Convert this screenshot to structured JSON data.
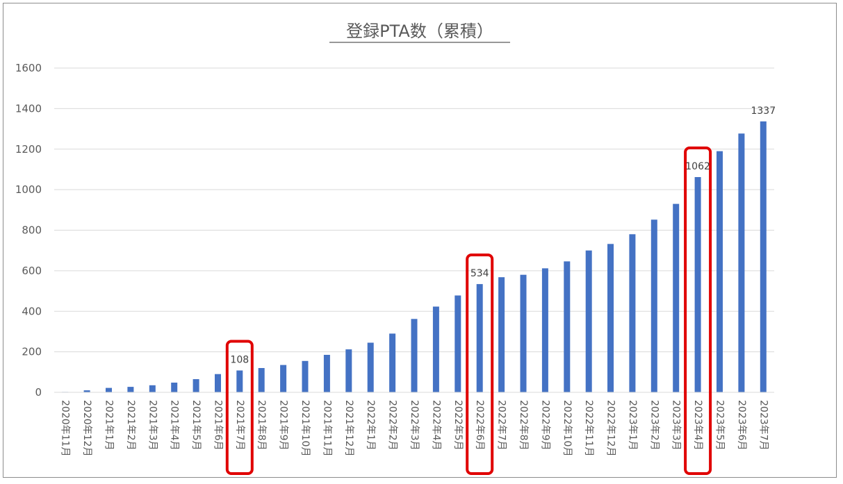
{
  "chart_data": {
    "type": "bar",
    "title": "登録PTA数（累積）",
    "xlabel": "",
    "ylabel": "",
    "ylim": [
      0,
      1600
    ],
    "yticks": [
      "0",
      "200",
      "400",
      "600",
      "800",
      "1000",
      "1200",
      "1400",
      "1600"
    ],
    "grid": true,
    "legend": "none",
    "categories": [
      "2020年11月",
      "2020年12月",
      "2021年1月",
      "2021年2月",
      "2021年3月",
      "2021年4月",
      "2021年5月",
      "2021年6月",
      "2021年7月",
      "2021年8月",
      "2021年9月",
      "2021年10月",
      "2021年11月",
      "2021年12月",
      "2022年1月",
      "2022年2月",
      "2022年3月",
      "2022年4月",
      "2022年5月",
      "2022年6月",
      "2022年7月",
      "2022年8月",
      "2022年9月",
      "2022年10月",
      "2022年11月",
      "2022年12月",
      "2023年1月",
      "2023年2月",
      "2023年3月",
      "2023年4月",
      "2023年5月",
      "2023年6月",
      "2023年7月"
    ],
    "values": [
      2,
      10,
      22,
      27,
      35,
      48,
      65,
      90,
      108,
      120,
      135,
      155,
      185,
      212,
      245,
      290,
      362,
      423,
      478,
      534,
      568,
      580,
      612,
      646,
      700,
      732,
      780,
      852,
      930,
      1062,
      1190,
      1277,
      1337
    ],
    "data_labels": {
      "8": "108",
      "19": "534",
      "29": "1062",
      "32": "1337"
    },
    "highlighted": [
      8,
      19,
      29
    ],
    "colors": {
      "bar": "#4472c4",
      "highlight": "#e00000",
      "grid": "#d9d9d9",
      "text": "#595959"
    }
  }
}
